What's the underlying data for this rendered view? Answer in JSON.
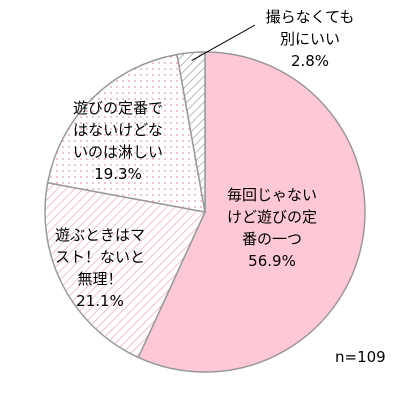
{
  "chart_data": {
    "type": "pie",
    "categories": [
      [
        "毎回じゃない",
        "けど遊びの定",
        "番の一つ"
      ],
      [
        "遊ぶときはマ",
        "スト！ないと",
        "無理！"
      ],
      [
        "遊びの定番で",
        "はないけどな",
        "いのは淋しい"
      ],
      [
        "撮らなくても",
        "別にいい"
      ]
    ],
    "values": [
      56.9,
      21.1,
      19.3,
      2.8
    ],
    "value_labels": [
      "56.9%",
      "21.1%",
      "19.3%",
      "2.8%"
    ],
    "colors": [
      "#ffc8d6",
      "#e79ab0",
      "#e79ab0",
      "#8c8c8c"
    ],
    "patterns": [
      "solid",
      "hatch",
      "dots",
      "hatch"
    ],
    "note": "n=109"
  }
}
